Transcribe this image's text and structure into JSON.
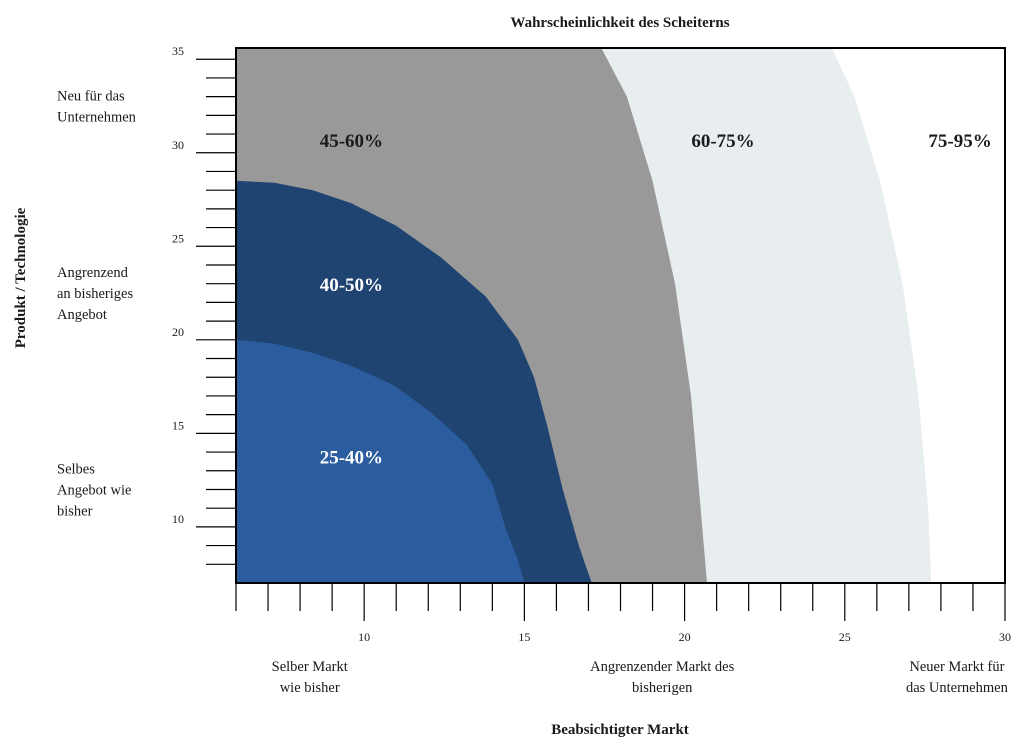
{
  "chart_data": {
    "type": "area",
    "title": "Wahrscheinlichkeit  des Scheiterns",
    "xlabel": "Beabsichtigter Markt",
    "ylabel": "Produkt / Technologie",
    "xlim": [
      6,
      30
    ],
    "ylim": [
      7,
      35.6
    ],
    "x_ticks": [
      10,
      15,
      20,
      25,
      30
    ],
    "y_ticks": [
      10,
      15,
      20,
      25,
      30,
      35
    ],
    "x_categories": [
      {
        "x": 8.3,
        "label": [
          "Selber Markt",
          "wie bisher"
        ]
      },
      {
        "x": 19.3,
        "label": [
          "Angrenzender  Markt des",
          "bisherigen"
        ]
      },
      {
        "x": 28.5,
        "label": [
          "Neuer Markt für",
          "das Unternehmen"
        ]
      }
    ],
    "y_categories": [
      {
        "y": 32.5,
        "label": [
          "Neu für das",
          "Unternehmen"
        ]
      },
      {
        "y": 22.5,
        "label": [
          "Angrenzend",
          "an bisheriges",
          "Angebot"
        ]
      },
      {
        "y": 12.0,
        "label": [
          "Selbes",
          "Angebot wie",
          "bisher"
        ]
      }
    ],
    "regions": [
      {
        "label": "75-95%",
        "color": "#ffffff",
        "text_color": "#1a1a1a",
        "label_pos": [
          28.6,
          30.3
        ],
        "boundary": null
      },
      {
        "label": "60-75%",
        "color": "#e8edf0",
        "text_color": "#1a1a1a",
        "label_pos": [
          21.2,
          30.3
        ],
        "boundary": [
          [
            24.6,
            35.6
          ],
          [
            25.3,
            33.0
          ],
          [
            26.1,
            28.5
          ],
          [
            26.8,
            23.0
          ],
          [
            27.3,
            17.0
          ],
          [
            27.6,
            11.0
          ],
          [
            27.7,
            7.0
          ]
        ]
      },
      {
        "label": "45-60%",
        "color": "#999999",
        "text_color": "#1a1a1a",
        "label_pos": [
          9.6,
          30.3
        ],
        "boundary": [
          [
            17.4,
            35.6
          ],
          [
            18.2,
            33.0
          ],
          [
            19.0,
            28.5
          ],
          [
            19.7,
            23.0
          ],
          [
            20.2,
            17.0
          ],
          [
            20.5,
            11.0
          ],
          [
            20.7,
            7.0
          ]
        ]
      },
      {
        "label": "40-50%",
        "color": "#1f4472",
        "text_color": "#ffffff",
        "label_pos": [
          9.6,
          22.6
        ],
        "boundary": [
          [
            6.0,
            28.5
          ],
          [
            7.2,
            28.4
          ],
          [
            8.4,
            28.0
          ],
          [
            9.6,
            27.3
          ],
          [
            11.0,
            26.1
          ],
          [
            12.4,
            24.4
          ],
          [
            13.8,
            22.3
          ],
          [
            14.8,
            20.0
          ],
          [
            15.3,
            18.0
          ],
          [
            15.7,
            15.5
          ],
          [
            16.2,
            12.0
          ],
          [
            16.7,
            9.0
          ],
          [
            17.1,
            7.0
          ]
        ]
      },
      {
        "label": "25-40%",
        "color": "#2b5c9e",
        "text_color": "#ffffff",
        "label_pos": [
          9.6,
          13.4
        ],
        "boundary": [
          [
            6.0,
            20.0
          ],
          [
            7.2,
            19.8
          ],
          [
            8.4,
            19.3
          ],
          [
            9.6,
            18.6
          ],
          [
            10.9,
            17.6
          ],
          [
            12.1,
            16.1
          ],
          [
            13.2,
            14.4
          ],
          [
            14.0,
            12.3
          ],
          [
            14.4,
            10.0
          ],
          [
            14.8,
            8.2
          ],
          [
            15.0,
            7.0
          ]
        ]
      }
    ],
    "grid": false,
    "legend": "none"
  }
}
